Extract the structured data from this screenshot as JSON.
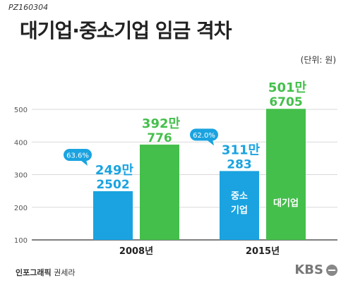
{
  "header": {
    "code": "PZ160304",
    "title": "대기업·중소기업 임금 격차",
    "unit": "(단위: 원)"
  },
  "footer": {
    "credit_label": "인포그래픽",
    "credit_name": "권세라",
    "brand": "KBS"
  },
  "colors": {
    "small": "#1aa3e0",
    "large": "#44bf4b",
    "axis": "#555555",
    "grid": "#d9d9d9"
  },
  "chart_data": {
    "type": "bar",
    "title": "대기업·중소기업 임금 격차",
    "unit": "(단위: 원)",
    "categories": [
      "2008년",
      "2015년"
    ],
    "series": [
      {
        "name": "중소기업",
        "values": [
          249.2502,
          311.0283
        ],
        "labels_top": [
          "249만",
          "311만"
        ],
        "labels_bottom": [
          "2502",
          "283"
        ]
      },
      {
        "name": "대기업",
        "values": [
          392.0776,
          501.6705
        ],
        "labels_top": [
          "392만",
          "501만"
        ],
        "labels_bottom": [
          "776",
          "6705"
        ]
      }
    ],
    "ratios": [
      "63.6%",
      "62.0%"
    ],
    "yticks": [
      100,
      200,
      300,
      400,
      500
    ],
    "ylim": [
      100,
      560
    ],
    "bar_labels": [
      "",
      "",
      "중소\n기업",
      "대기업"
    ]
  }
}
